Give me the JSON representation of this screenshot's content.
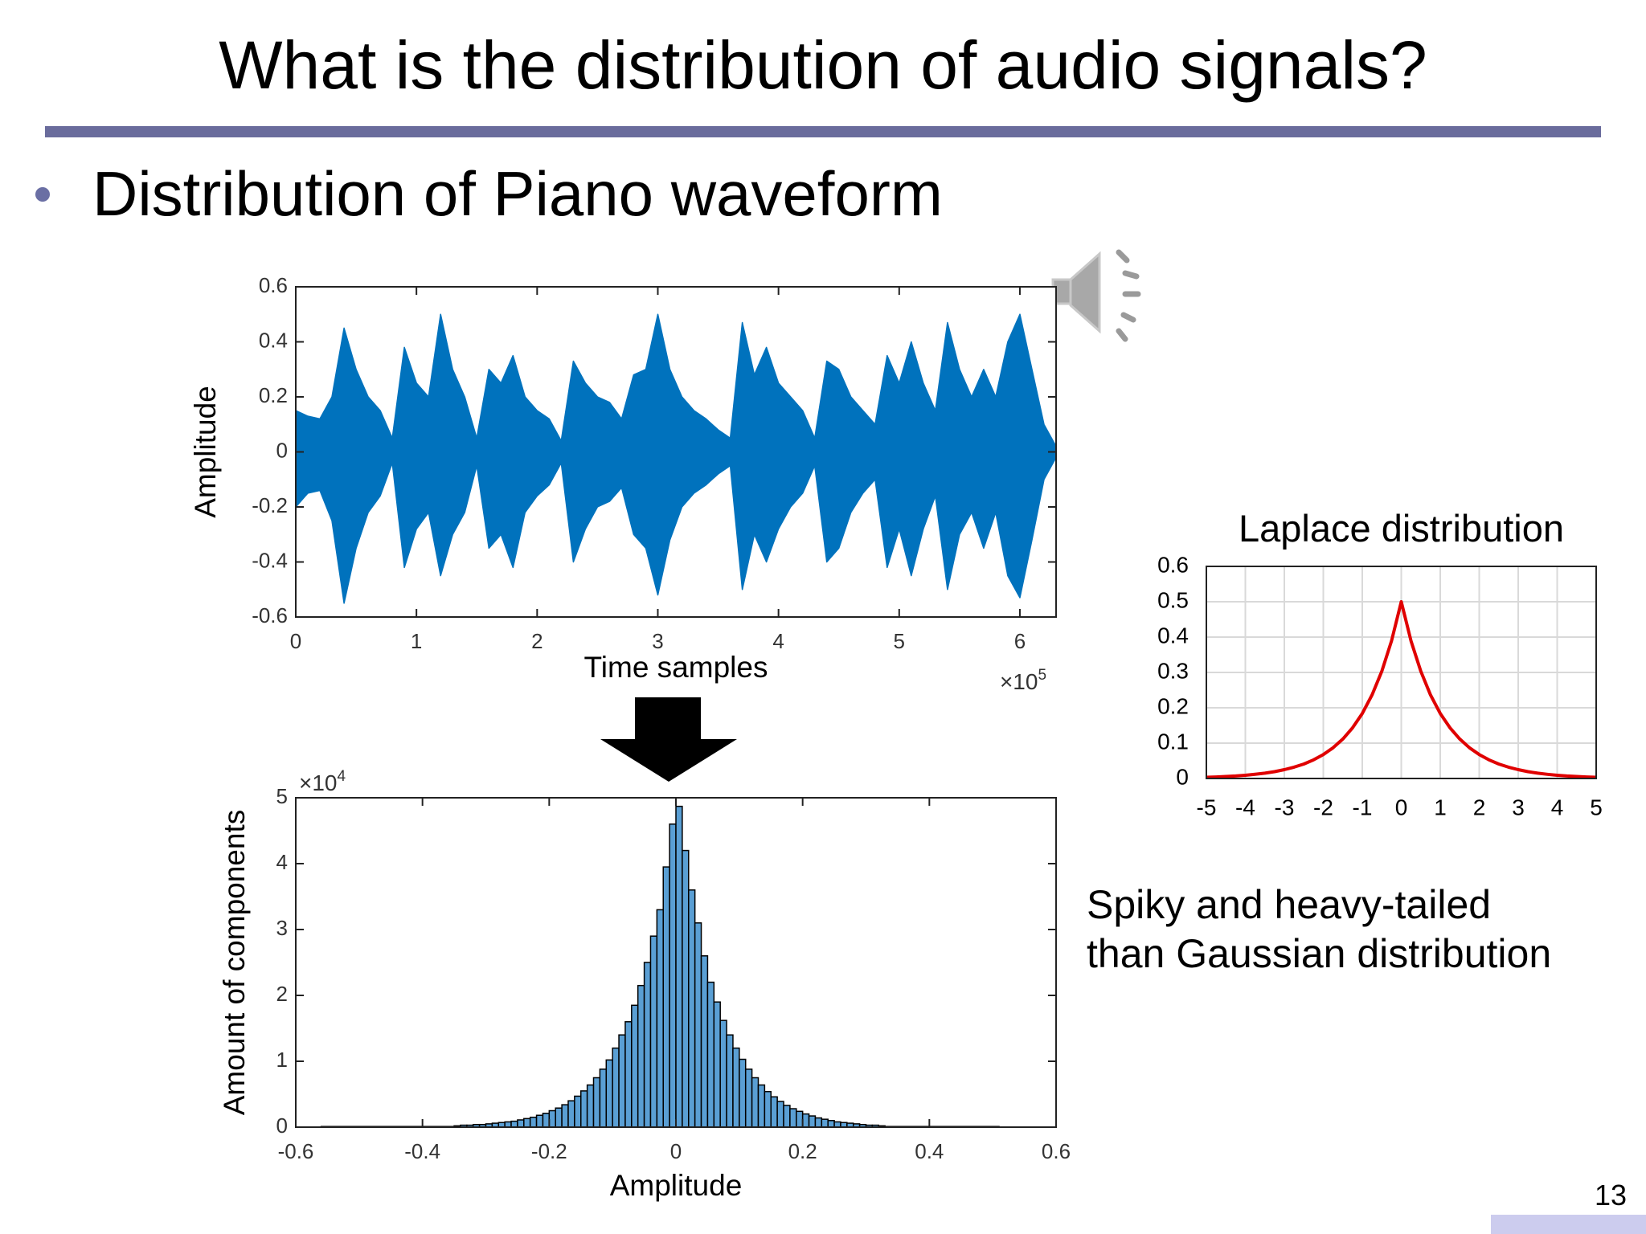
{
  "title": "What is the distribution of audio signals?",
  "bullet": "Distribution of Piano waveform",
  "note": [
    "Spiky and heavy-tailed",
    "than Gaussian distribution"
  ],
  "page_number": "13",
  "chart_data": [
    {
      "type": "area",
      "xlabel": "Time samples",
      "ylabel": "Amplitude",
      "x_multiplier": {
        "base": "×10",
        "exponent": "5"
      },
      "xlim": [
        0,
        6.3
      ],
      "ylim": [
        -0.6,
        0.6
      ],
      "xticks": [
        0,
        1,
        2,
        3,
        4,
        5,
        6
      ],
      "yticks": [
        -0.6,
        -0.4,
        -0.2,
        0,
        0.2,
        0.4,
        0.6
      ],
      "x": [
        0,
        0.1,
        0.2,
        0.3,
        0.4,
        0.5,
        0.6,
        0.7,
        0.8,
        0.9,
        1,
        1.1,
        1.2,
        1.3,
        1.4,
        1.5,
        1.6,
        1.7,
        1.8,
        1.9,
        2,
        2.1,
        2.2,
        2.3,
        2.4,
        2.5,
        2.6,
        2.7,
        2.8,
        2.9,
        3,
        3.1,
        3.2,
        3.3,
        3.4,
        3.5,
        3.6,
        3.7,
        3.8,
        3.9,
        4,
        4.1,
        4.2,
        4.3,
        4.4,
        4.5,
        4.6,
        4.7,
        4.8,
        4.9,
        5,
        5.1,
        5.2,
        5.3,
        5.4,
        5.5,
        5.6,
        5.7,
        5.8,
        5.9,
        6,
        6.1,
        6.2,
        6.3
      ],
      "series": [
        {
          "color": "#0072bd",
          "values": [
            0.15,
            0.13,
            0.12,
            0.2,
            0.45,
            0.3,
            0.2,
            0.15,
            0.05,
            0.38,
            0.25,
            0.2,
            0.5,
            0.3,
            0.2,
            0.05,
            0.3,
            0.25,
            0.35,
            0.2,
            0.15,
            0.12,
            0.04,
            0.33,
            0.25,
            0.2,
            0.18,
            0.12,
            0.28,
            0.3,
            0.5,
            0.3,
            0.2,
            0.15,
            0.12,
            0.08,
            0.05,
            0.47,
            0.28,
            0.38,
            0.25,
            0.2,
            0.15,
            0.05,
            0.33,
            0.3,
            0.2,
            0.15,
            0.1,
            0.35,
            0.25,
            0.4,
            0.25,
            0.15,
            0.47,
            0.3,
            0.2,
            0.3,
            0.2,
            0.4,
            0.5,
            0.3,
            0.1,
            0.02
          ]
        },
        {
          "color": "#0072bd",
          "values": [
            -0.2,
            -0.15,
            -0.14,
            -0.25,
            -0.55,
            -0.35,
            -0.22,
            -0.16,
            -0.04,
            -0.42,
            -0.28,
            -0.22,
            -0.45,
            -0.3,
            -0.22,
            -0.05,
            -0.35,
            -0.3,
            -0.42,
            -0.22,
            -0.16,
            -0.12,
            -0.04,
            -0.4,
            -0.28,
            -0.2,
            -0.18,
            -0.13,
            -0.3,
            -0.35,
            -0.52,
            -0.32,
            -0.2,
            -0.15,
            -0.12,
            -0.08,
            -0.05,
            -0.5,
            -0.3,
            -0.4,
            -0.28,
            -0.2,
            -0.15,
            -0.05,
            -0.4,
            -0.35,
            -0.22,
            -0.15,
            -0.1,
            -0.42,
            -0.28,
            -0.45,
            -0.28,
            -0.16,
            -0.5,
            -0.3,
            -0.22,
            -0.35,
            -0.22,
            -0.45,
            -0.53,
            -0.32,
            -0.1,
            -0.02
          ]
        }
      ]
    },
    {
      "type": "histogram",
      "xlabel": "Amplitude",
      "ylabel": "Amount of components",
      "y_multiplier": {
        "base": "×10",
        "exponent": "4"
      },
      "xlim": [
        -0.6,
        0.6
      ],
      "ylim": [
        0,
        5
      ],
      "xticks": [
        -0.6,
        -0.4,
        -0.2,
        0,
        0.2,
        0.4,
        0.6
      ],
      "yticks": [
        0,
        1,
        2,
        3,
        4,
        5
      ],
      "color": "#5a9fd4",
      "bins": [
        -0.56,
        -0.35,
        -0.34,
        -0.33,
        -0.32,
        -0.31,
        -0.3,
        -0.29,
        -0.28,
        -0.27,
        -0.26,
        -0.25,
        -0.24,
        -0.23,
        -0.22,
        -0.21,
        -0.2,
        -0.19,
        -0.18,
        -0.17,
        -0.16,
        -0.15,
        -0.14,
        -0.13,
        -0.12,
        -0.11,
        -0.1,
        -0.09,
        -0.08,
        -0.07,
        -0.06,
        -0.05,
        -0.04,
        -0.03,
        -0.02,
        -0.01,
        0,
        0.01,
        0.02,
        0.03,
        0.04,
        0.05,
        0.06,
        0.07,
        0.08,
        0.09,
        0.1,
        0.11,
        0.12,
        0.13,
        0.14,
        0.15,
        0.16,
        0.17,
        0.18,
        0.19,
        0.2,
        0.21,
        0.22,
        0.23,
        0.24,
        0.25,
        0.26,
        0.27,
        0.28,
        0.29,
        0.3,
        0.31,
        0.32,
        0.33,
        0.51
      ],
      "values": [
        0.01,
        0.02,
        0.03,
        0.03,
        0.04,
        0.04,
        0.05,
        0.06,
        0.07,
        0.08,
        0.09,
        0.11,
        0.13,
        0.15,
        0.18,
        0.21,
        0.25,
        0.29,
        0.34,
        0.4,
        0.47,
        0.55,
        0.64,
        0.75,
        0.88,
        1.02,
        1.2,
        1.4,
        1.6,
        1.85,
        2.15,
        2.5,
        2.9,
        3.3,
        3.95,
        4.6,
        4.87,
        4.2,
        3.6,
        3.1,
        2.6,
        2.2,
        1.9,
        1.62,
        1.4,
        1.2,
        1.03,
        0.88,
        0.75,
        0.64,
        0.54,
        0.46,
        0.39,
        0.33,
        0.28,
        0.24,
        0.2,
        0.17,
        0.14,
        0.12,
        0.1,
        0.08,
        0.07,
        0.06,
        0.05,
        0.04,
        0.03,
        0.03,
        0.02,
        0.01
      ]
    },
    {
      "type": "line",
      "title": "Laplace distribution",
      "grid": true,
      "color": "#e00000",
      "xlim": [
        -5,
        5
      ],
      "ylim": [
        0,
        0.6
      ],
      "xticks": [
        -5,
        -4,
        -3,
        -2,
        -1,
        0,
        1,
        2,
        3,
        4,
        5
      ],
      "yticks": [
        0,
        0.1,
        0.2,
        0.3,
        0.4,
        0.5,
        0.6
      ],
      "x": [
        -5,
        -4.75,
        -4.5,
        -4.25,
        -4,
        -3.75,
        -3.5,
        -3.25,
        -3,
        -2.75,
        -2.5,
        -2.25,
        -2,
        -1.75,
        -1.5,
        -1.25,
        -1,
        -0.75,
        -0.5,
        -0.25,
        0,
        0.25,
        0.5,
        0.75,
        1,
        1.25,
        1.5,
        1.75,
        2,
        2.25,
        2.5,
        2.75,
        3,
        3.25,
        3.5,
        3.75,
        4,
        4.25,
        4.5,
        4.75,
        5
      ],
      "values": [
        0.0034,
        0.0043,
        0.0056,
        0.0071,
        0.0092,
        0.0118,
        0.0151,
        0.0194,
        0.0249,
        0.032,
        0.041,
        0.0527,
        0.0677,
        0.0869,
        0.1116,
        0.1433,
        0.1839,
        0.2362,
        0.3033,
        0.3894,
        0.5,
        0.3894,
        0.3033,
        0.2362,
        0.1839,
        0.1433,
        0.1116,
        0.0869,
        0.0677,
        0.0527,
        0.041,
        0.032,
        0.0249,
        0.0194,
        0.0151,
        0.0118,
        0.0092,
        0.0071,
        0.0056,
        0.0043,
        0.0034
      ]
    }
  ]
}
